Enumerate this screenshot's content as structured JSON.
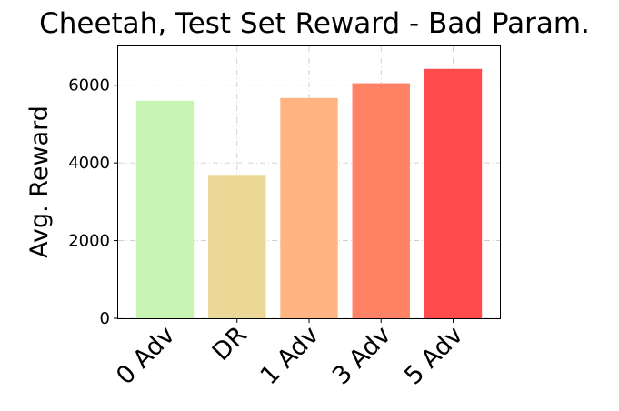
{
  "chart_data": {
    "type": "bar",
    "title": "Cheetah, Test Set Reward - Bad Param.",
    "xlabel": "",
    "ylabel": "Avg. Reward",
    "categories": [
      "0 Adv",
      "DR",
      "1 Adv",
      "3 Adv",
      "5 Adv"
    ],
    "values": [
      5600,
      3670,
      5670,
      6050,
      6420
    ],
    "colors": [
      "#c8f5b4",
      "#ebd897",
      "#ffb482",
      "#ff8264",
      "#ff4b4b"
    ],
    "ylim": [
      0,
      7000
    ],
    "yticks": [
      0,
      2000,
      4000,
      6000
    ],
    "grid": true,
    "legend": "none"
  }
}
